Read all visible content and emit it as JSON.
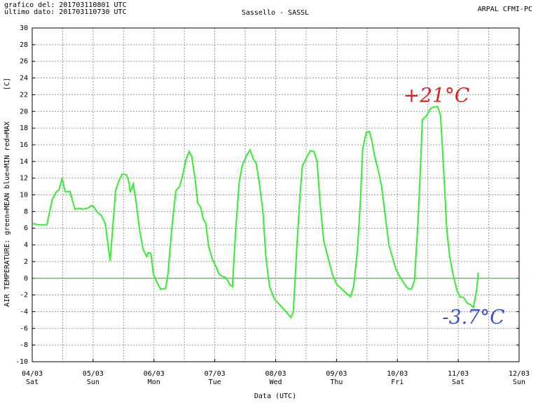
{
  "chart_data": {
    "type": "line",
    "header_left": [
      "grafico del: 201703110801 UTC",
      "ultimo dato: 201703110730 UTC"
    ],
    "title": "Sassello - SASSL",
    "header_right": "ARPAL CFMI-PC",
    "ylabel": "AIR TEMPERATURE: green=MEAN  blue=MIN  red=MAX",
    "yunit": "[C]",
    "xlabel": "Data (UTC)",
    "xlim": [
      0,
      8
    ],
    "xticks": [
      {
        "value": 0,
        "label": "04/03"
      },
      {
        "value": 1,
        "label": "05/03"
      },
      {
        "value": 2,
        "label": "06/03"
      },
      {
        "value": 3,
        "label": "07/03"
      },
      {
        "value": 4,
        "label": "08/03"
      },
      {
        "value": 5,
        "label": "09/03"
      },
      {
        "value": 6,
        "label": "10/03"
      },
      {
        "value": 7,
        "label": "11/03"
      },
      {
        "value": 8,
        "label": "12/03"
      }
    ],
    "xtick_days": [
      "Sat",
      "Sun",
      "Mon",
      "Tue",
      "Wed",
      "Thu",
      "Fri",
      "Sat",
      "Sun"
    ],
    "ylim": [
      -10,
      30
    ],
    "yticks": [
      -10,
      -8,
      -6,
      -4,
      -2,
      0,
      2,
      4,
      6,
      8,
      10,
      12,
      14,
      16,
      18,
      20,
      22,
      24,
      26,
      28,
      30
    ],
    "grid": true,
    "annotations": [
      {
        "text": "+21°C",
        "color": "#e02020"
      },
      {
        "text": "-3.7°C",
        "color": "#4050d0"
      }
    ],
    "series": [
      {
        "name": "MEAN",
        "color": "#33ee33",
        "x": [
          0,
          0.1,
          0.24,
          0.33,
          0.39,
          0.44,
          0.49,
          0.54,
          0.62,
          0.7,
          0.77,
          0.83,
          0.91,
          0.97,
          1.01,
          1.07,
          1.14,
          1.2,
          1.28,
          1.37,
          1.43,
          1.48,
          1.55,
          1.59,
          1.61,
          1.66,
          1.7,
          1.76,
          1.82,
          1.88,
          1.91,
          1.95,
          1.99,
          2.05,
          2.11,
          2.19,
          2.23,
          2.3,
          2.36,
          2.42,
          2.46,
          2.53,
          2.58,
          2.62,
          2.67,
          2.72,
          2.77,
          2.81,
          2.85,
          2.9,
          2.96,
          3.02,
          3.07,
          3.13,
          3.18,
          3.25,
          3.29,
          3.34,
          3.4,
          3.45,
          3.52,
          3.58,
          3.63,
          3.68,
          3.73,
          3.79,
          3.84,
          3.9,
          3.98,
          4.07,
          4.17,
          4.25,
          4.29,
          4.35,
          4.4,
          4.44,
          4.51,
          4.57,
          4.63,
          4.68,
          4.73,
          4.79,
          4.86,
          4.93,
          5.0,
          5.09,
          5.16,
          5.23,
          5.28,
          5.34,
          5.39,
          5.43,
          5.49,
          5.54,
          5.58,
          5.63,
          5.69,
          5.74,
          5.8,
          5.86,
          5.92,
          5.97,
          6.04,
          6.11,
          6.17,
          6.23,
          6.28,
          6.34,
          6.38,
          6.41,
          6.48,
          6.54,
          6.58,
          6.66,
          6.71,
          6.76,
          6.81,
          6.86,
          6.92,
          6.98,
          7.03,
          7.09,
          7.15,
          7.21,
          7.25,
          7.3,
          7.33
        ],
        "values": [
          6.6,
          6.4,
          6.4,
          9.5,
          10.3,
          10.6,
          12.0,
          10.4,
          10.4,
          8.3,
          8.4,
          8.3,
          8.4,
          8.7,
          8.6,
          7.9,
          7.5,
          6.5,
          2.1,
          10.5,
          11.8,
          12.5,
          12.4,
          11.5,
          10.3,
          11.3,
          9.5,
          6.0,
          3.5,
          2.6,
          3.1,
          3.0,
          0.5,
          -0.5,
          -1.3,
          -1.2,
          0.5,
          6.5,
          10.5,
          11.0,
          12.0,
          14.3,
          15.2,
          14.6,
          12.2,
          9.0,
          8.5,
          7.1,
          6.6,
          3.8,
          2.3,
          1.4,
          0.5,
          0.2,
          0.1,
          -0.8,
          -1.0,
          5.5,
          11.5,
          13.5,
          14.7,
          15.4,
          14.3,
          13.8,
          11.5,
          8.0,
          2.5,
          -1.0,
          -2.5,
          -3.2,
          -4.0,
          -4.7,
          -4.0,
          4.0,
          10.0,
          13.5,
          14.5,
          15.3,
          15.2,
          14.0,
          9.0,
          4.5,
          2.5,
          0.5,
          -0.7,
          -1.3,
          -1.8,
          -2.2,
          -1.0,
          3.0,
          9.0,
          15.5,
          17.5,
          17.6,
          16.5,
          14.5,
          12.8,
          11.0,
          7.5,
          4.0,
          2.5,
          1.2,
          0.2,
          -0.6,
          -1.2,
          -1.3,
          -0.3,
          7.0,
          13.5,
          19.0,
          19.5,
          20.3,
          20.5,
          20.6,
          19.5,
          13.0,
          6.0,
          2.5,
          0.3,
          -1.5,
          -2.2,
          -2.3,
          -3.0,
          -3.2,
          -3.5,
          -1.5,
          0.7
        ]
      }
    ]
  }
}
